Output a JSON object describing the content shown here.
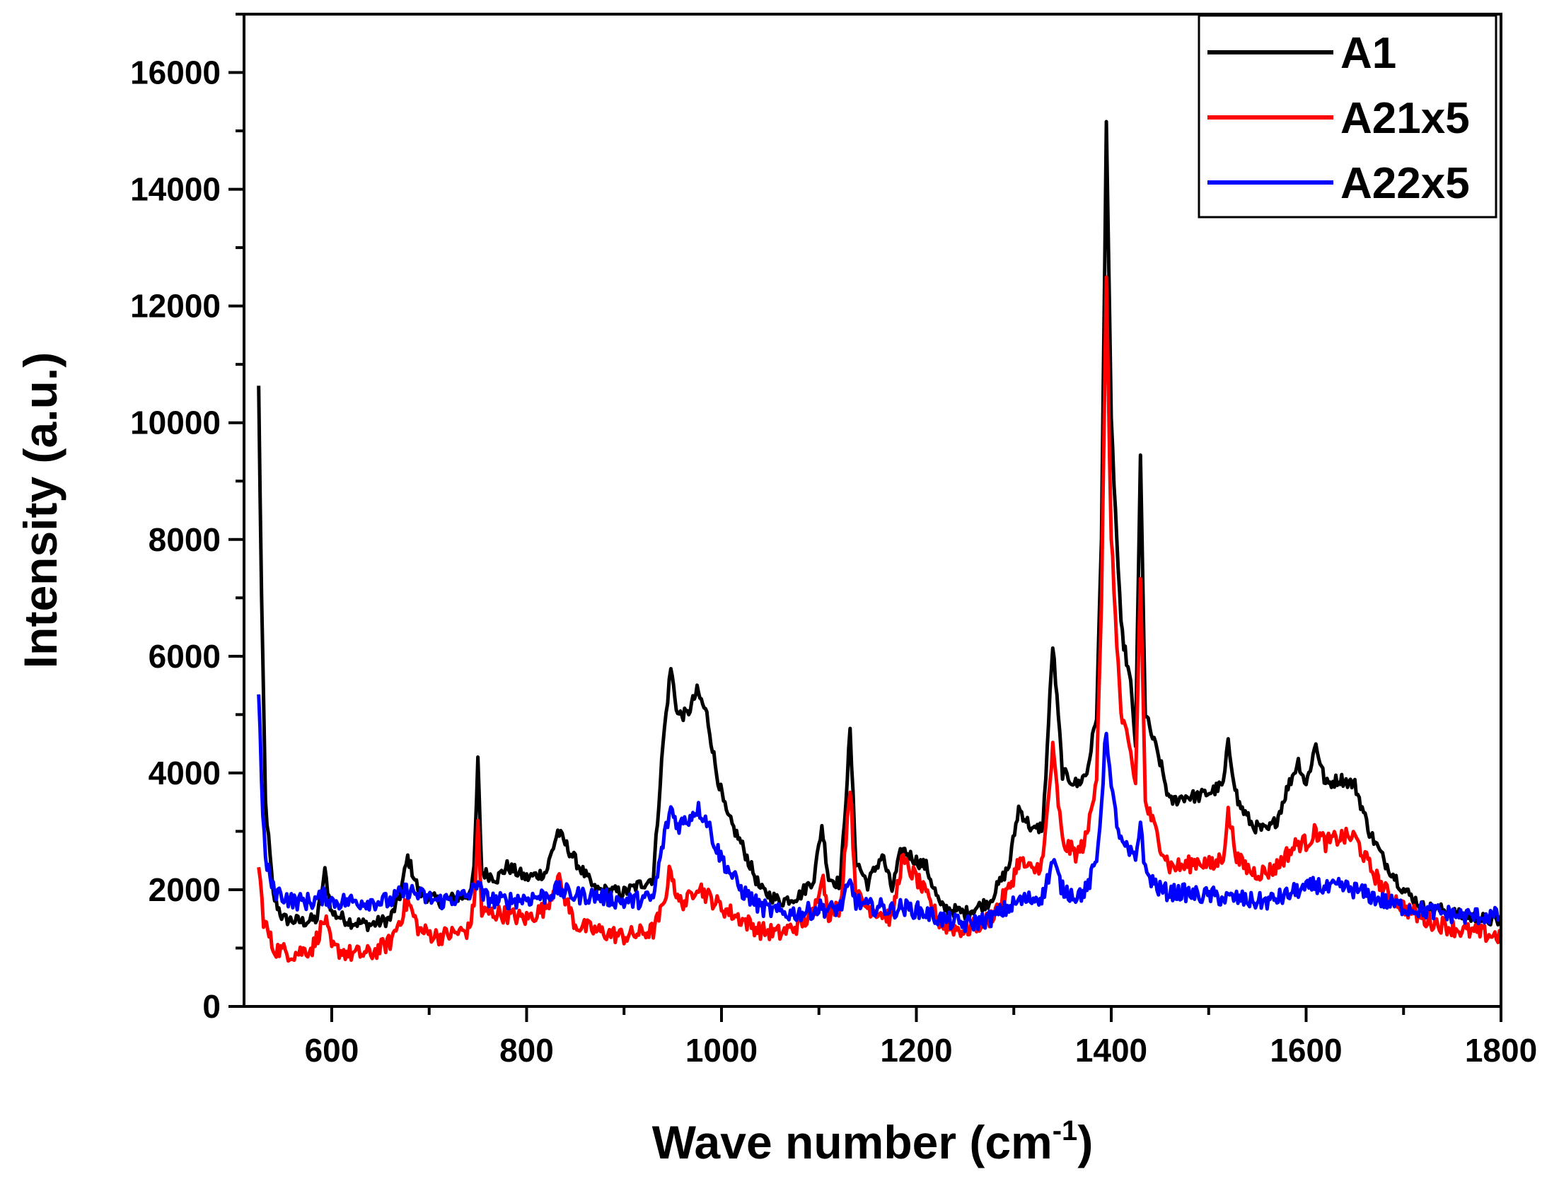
{
  "chart_data": {
    "type": "line",
    "title": "",
    "xlabel": "Wave number (cm",
    "xlabel_sup": "-1",
    "xlabel_close": ")",
    "ylabel": "Intensity (a.u.)",
    "xlim": [
      510,
      1800
    ],
    "ylim": [
      0,
      17000
    ],
    "xticks": [
      600,
      800,
      1000,
      1200,
      1400,
      1600,
      1800
    ],
    "xtick_labels": [
      "600",
      "800",
      "1000",
      "1200",
      "1400",
      "1600",
      "1800"
    ],
    "yticks": [
      0,
      2000,
      4000,
      6000,
      8000,
      10000,
      12000,
      14000,
      16000
    ],
    "ytick_labels": [
      "0",
      "2000",
      "4000",
      "6000",
      "8000",
      "10000",
      "12000",
      "14000",
      "16000"
    ],
    "legend_position": "top-right",
    "series": [
      {
        "name": "A1",
        "color": "#000000",
        "points": [
          [
            525,
            10600
          ],
          [
            528,
            7000
          ],
          [
            532,
            3500
          ],
          [
            540,
            1900
          ],
          [
            550,
            1500
          ],
          [
            570,
            1450
          ],
          [
            585,
            1500
          ],
          [
            593,
            2300
          ],
          [
            600,
            1600
          ],
          [
            620,
            1450
          ],
          [
            640,
            1400
          ],
          [
            660,
            1500
          ],
          [
            670,
            1900
          ],
          [
            678,
            2550
          ],
          [
            690,
            1950
          ],
          [
            710,
            1800
          ],
          [
            740,
            1900
          ],
          [
            746,
            2300
          ],
          [
            750,
            4200
          ],
          [
            754,
            2300
          ],
          [
            770,
            2200
          ],
          [
            780,
            2400
          ],
          [
            800,
            2200
          ],
          [
            820,
            2300
          ],
          [
            832,
            3000
          ],
          [
            850,
            2500
          ],
          [
            870,
            2000
          ],
          [
            900,
            1950
          ],
          [
            930,
            2200
          ],
          [
            940,
            4500
          ],
          [
            948,
            5800
          ],
          [
            955,
            5000
          ],
          [
            965,
            5000
          ],
          [
            975,
            5400
          ],
          [
            985,
            5000
          ],
          [
            995,
            4000
          ],
          [
            1005,
            3300
          ],
          [
            1020,
            2800
          ],
          [
            1040,
            2000
          ],
          [
            1060,
            1800
          ],
          [
            1080,
            1900
          ],
          [
            1095,
            2200
          ],
          [
            1103,
            3100
          ],
          [
            1110,
            2200
          ],
          [
            1122,
            2100
          ],
          [
            1132,
            4700
          ],
          [
            1138,
            2500
          ],
          [
            1150,
            2100
          ],
          [
            1165,
            2600
          ],
          [
            1175,
            2000
          ],
          [
            1185,
            2700
          ],
          [
            1200,
            2500
          ],
          [
            1210,
            2400
          ],
          [
            1225,
            1700
          ],
          [
            1250,
            1600
          ],
          [
            1275,
            1800
          ],
          [
            1295,
            2400
          ],
          [
            1305,
            3400
          ],
          [
            1320,
            3000
          ],
          [
            1330,
            3100
          ],
          [
            1340,
            6200
          ],
          [
            1350,
            4000
          ],
          [
            1365,
            3800
          ],
          [
            1375,
            4000
          ],
          [
            1385,
            5000
          ],
          [
            1390,
            8000
          ],
          [
            1395,
            15200
          ],
          [
            1400,
            10000
          ],
          [
            1410,
            6500
          ],
          [
            1420,
            5500
          ],
          [
            1425,
            4500
          ],
          [
            1430,
            9400
          ],
          [
            1435,
            5000
          ],
          [
            1450,
            4200
          ],
          [
            1460,
            3500
          ],
          [
            1475,
            3600
          ],
          [
            1490,
            3600
          ],
          [
            1505,
            3700
          ],
          [
            1515,
            3800
          ],
          [
            1520,
            4500
          ],
          [
            1530,
            3500
          ],
          [
            1545,
            3100
          ],
          [
            1560,
            3000
          ],
          [
            1570,
            3200
          ],
          [
            1580,
            3700
          ],
          [
            1592,
            4200
          ],
          [
            1600,
            3800
          ],
          [
            1610,
            4500
          ],
          [
            1620,
            3800
          ],
          [
            1635,
            3900
          ],
          [
            1650,
            3800
          ],
          [
            1665,
            3000
          ],
          [
            1680,
            2500
          ],
          [
            1700,
            2000
          ],
          [
            1720,
            1700
          ],
          [
            1740,
            1650
          ],
          [
            1760,
            1550
          ],
          [
            1780,
            1500
          ],
          [
            1800,
            1450
          ]
        ]
      },
      {
        "name": "A21x5",
        "color": "#ff0000",
        "points": [
          [
            525,
            2400
          ],
          [
            530,
            1500
          ],
          [
            540,
            1000
          ],
          [
            560,
            900
          ],
          [
            580,
            1000
          ],
          [
            593,
            1500
          ],
          [
            600,
            1000
          ],
          [
            620,
            900
          ],
          [
            640,
            900
          ],
          [
            660,
            1100
          ],
          [
            678,
            1800
          ],
          [
            690,
            1300
          ],
          [
            710,
            1200
          ],
          [
            740,
            1300
          ],
          [
            746,
            1700
          ],
          [
            750,
            3100
          ],
          [
            754,
            1600
          ],
          [
            770,
            1600
          ],
          [
            800,
            1500
          ],
          [
            820,
            1700
          ],
          [
            832,
            2200
          ],
          [
            850,
            1400
          ],
          [
            870,
            1300
          ],
          [
            900,
            1200
          ],
          [
            930,
            1300
          ],
          [
            940,
            1700
          ],
          [
            948,
            2400
          ],
          [
            955,
            1800
          ],
          [
            965,
            1800
          ],
          [
            975,
            2100
          ],
          [
            985,
            1900
          ],
          [
            1000,
            1700
          ],
          [
            1020,
            1500
          ],
          [
            1040,
            1300
          ],
          [
            1060,
            1250
          ],
          [
            1080,
            1400
          ],
          [
            1095,
            1600
          ],
          [
            1103,
            2300
          ],
          [
            1110,
            1600
          ],
          [
            1122,
            1700
          ],
          [
            1132,
            3800
          ],
          [
            1138,
            1900
          ],
          [
            1150,
            1700
          ],
          [
            1165,
            1600
          ],
          [
            1175,
            1500
          ],
          [
            1185,
            2500
          ],
          [
            1200,
            2200
          ],
          [
            1210,
            1900
          ],
          [
            1225,
            1400
          ],
          [
            1250,
            1300
          ],
          [
            1275,
            1500
          ],
          [
            1295,
            2000
          ],
          [
            1305,
            2500
          ],
          [
            1320,
            2300
          ],
          [
            1330,
            2500
          ],
          [
            1340,
            4400
          ],
          [
            1350,
            2800
          ],
          [
            1365,
            2600
          ],
          [
            1375,
            2900
          ],
          [
            1385,
            4000
          ],
          [
            1390,
            7000
          ],
          [
            1395,
            12400
          ],
          [
            1400,
            8000
          ],
          [
            1410,
            5000
          ],
          [
            1420,
            4300
          ],
          [
            1425,
            3800
          ],
          [
            1430,
            7400
          ],
          [
            1435,
            3500
          ],
          [
            1450,
            2800
          ],
          [
            1460,
            2400
          ],
          [
            1475,
            2400
          ],
          [
            1490,
            2500
          ],
          [
            1505,
            2400
          ],
          [
            1515,
            2600
          ],
          [
            1520,
            3300
          ],
          [
            1530,
            2500
          ],
          [
            1545,
            2300
          ],
          [
            1560,
            2300
          ],
          [
            1570,
            2400
          ],
          [
            1580,
            2600
          ],
          [
            1592,
            2800
          ],
          [
            1600,
            2800
          ],
          [
            1610,
            3000
          ],
          [
            1620,
            2800
          ],
          [
            1635,
            2900
          ],
          [
            1650,
            2900
          ],
          [
            1665,
            2400
          ],
          [
            1680,
            2000
          ],
          [
            1700,
            1700
          ],
          [
            1720,
            1500
          ],
          [
            1740,
            1400
          ],
          [
            1760,
            1300
          ],
          [
            1780,
            1250
          ],
          [
            1800,
            1200
          ]
        ]
      },
      {
        "name": "A22x5",
        "color": "#0000ff",
        "points": [
          [
            525,
            5400
          ],
          [
            528,
            3800
          ],
          [
            532,
            2500
          ],
          [
            540,
            2000
          ],
          [
            560,
            1800
          ],
          [
            580,
            1800
          ],
          [
            593,
            1900
          ],
          [
            600,
            1800
          ],
          [
            620,
            1800
          ],
          [
            640,
            1800
          ],
          [
            660,
            1800
          ],
          [
            678,
            2000
          ],
          [
            690,
            1900
          ],
          [
            710,
            1800
          ],
          [
            740,
            1900
          ],
          [
            746,
            2000
          ],
          [
            750,
            2200
          ],
          [
            754,
            1900
          ],
          [
            770,
            1800
          ],
          [
            800,
            1850
          ],
          [
            820,
            1900
          ],
          [
            832,
            2000
          ],
          [
            850,
            1900
          ],
          [
            870,
            1900
          ],
          [
            900,
            1800
          ],
          [
            930,
            1850
          ],
          [
            940,
            2800
          ],
          [
            948,
            3400
          ],
          [
            955,
            3100
          ],
          [
            965,
            3200
          ],
          [
            975,
            3400
          ],
          [
            985,
            3200
          ],
          [
            995,
            2700
          ],
          [
            1005,
            2400
          ],
          [
            1020,
            2000
          ],
          [
            1040,
            1700
          ],
          [
            1060,
            1600
          ],
          [
            1080,
            1600
          ],
          [
            1095,
            1650
          ],
          [
            1103,
            1700
          ],
          [
            1110,
            1650
          ],
          [
            1122,
            1700
          ],
          [
            1132,
            2100
          ],
          [
            1138,
            1800
          ],
          [
            1150,
            1700
          ],
          [
            1165,
            1700
          ],
          [
            1175,
            1650
          ],
          [
            1185,
            1700
          ],
          [
            1200,
            1650
          ],
          [
            1210,
            1600
          ],
          [
            1225,
            1500
          ],
          [
            1250,
            1400
          ],
          [
            1275,
            1500
          ],
          [
            1295,
            1700
          ],
          [
            1305,
            1800
          ],
          [
            1320,
            1850
          ],
          [
            1330,
            1900
          ],
          [
            1340,
            2500
          ],
          [
            1350,
            2000
          ],
          [
            1365,
            1900
          ],
          [
            1375,
            2000
          ],
          [
            1385,
            2500
          ],
          [
            1390,
            3500
          ],
          [
            1395,
            4800
          ],
          [
            1400,
            3700
          ],
          [
            1410,
            2800
          ],
          [
            1420,
            2600
          ],
          [
            1425,
            2500
          ],
          [
            1430,
            3200
          ],
          [
            1435,
            2300
          ],
          [
            1450,
            2000
          ],
          [
            1460,
            1950
          ],
          [
            1475,
            1950
          ],
          [
            1490,
            1900
          ],
          [
            1505,
            1900
          ],
          [
            1515,
            1850
          ],
          [
            1520,
            1850
          ],
          [
            1530,
            1850
          ],
          [
            1545,
            1800
          ],
          [
            1560,
            1800
          ],
          [
            1570,
            1850
          ],
          [
            1580,
            1900
          ],
          [
            1592,
            2000
          ],
          [
            1600,
            2000
          ],
          [
            1610,
            2100
          ],
          [
            1620,
            2000
          ],
          [
            1635,
            2050
          ],
          [
            1650,
            2000
          ],
          [
            1665,
            1900
          ],
          [
            1680,
            1800
          ],
          [
            1700,
            1700
          ],
          [
            1720,
            1650
          ],
          [
            1740,
            1600
          ],
          [
            1760,
            1550
          ],
          [
            1780,
            1550
          ],
          [
            1800,
            1550
          ]
        ]
      }
    ]
  }
}
